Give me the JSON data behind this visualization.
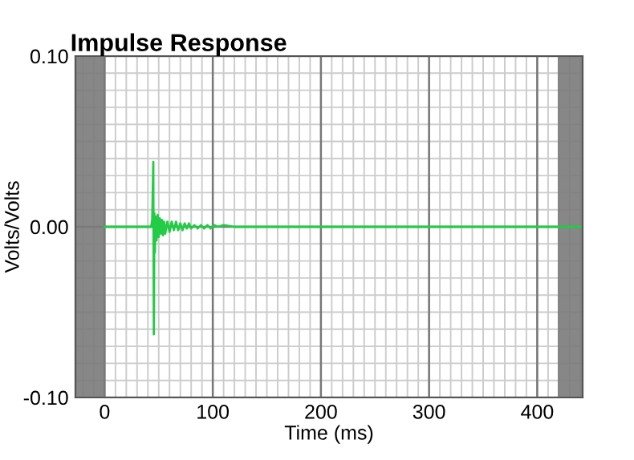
{
  "chart_data": {
    "type": "line",
    "title": "Impulse Response",
    "xlabel": "Time (ms)",
    "ylabel": "Volts/Volts",
    "xlim": [
      -27,
      442
    ],
    "ylim": [
      -0.1,
      0.1
    ],
    "xticks": [
      0,
      100,
      200,
      300,
      400
    ],
    "yticks": [
      {
        "value": -0.1,
        "label": "-0.10"
      },
      {
        "value": 0,
        "label": "0.00"
      },
      {
        "value": 0.1,
        "label": "0.10"
      }
    ],
    "grid": true,
    "marker": "none",
    "line_style": "solid",
    "bands": [
      {
        "axis": "x",
        "from": -27,
        "to": 0,
        "color": "#7a7a7a"
      },
      {
        "axis": "x",
        "from": 419,
        "to": 442,
        "color": "#7a7a7a"
      }
    ],
    "series": [
      {
        "color": "#22cc44",
        "x": [
          0,
          43,
          44,
          45,
          45.5,
          46,
          46.5,
          47,
          48,
          49,
          50,
          51,
          52,
          53,
          54,
          55,
          56,
          58,
          60,
          62,
          64,
          66,
          68,
          70,
          72,
          74,
          76,
          78,
          80,
          83,
          86,
          89,
          92,
          95,
          98,
          101,
          105,
          110,
          120,
          140,
          442
        ],
        "values": [
          0,
          0,
          0.004,
          0.038,
          -0.063,
          0.008,
          -0.015,
          0.006,
          -0.008,
          0.007,
          -0.006,
          0.005,
          -0.004,
          0.004,
          -0.005,
          0.003,
          -0.004,
          0.003,
          -0.003,
          0.003,
          -0.002,
          0.003,
          -0.002,
          0.002,
          -0.002,
          0.002,
          -0.001,
          0.002,
          -0.001,
          0.001,
          -0.001,
          0.001,
          -0.001,
          0.001,
          -0.001,
          0.001,
          0,
          0.001,
          0,
          0,
          0
        ]
      }
    ]
  }
}
